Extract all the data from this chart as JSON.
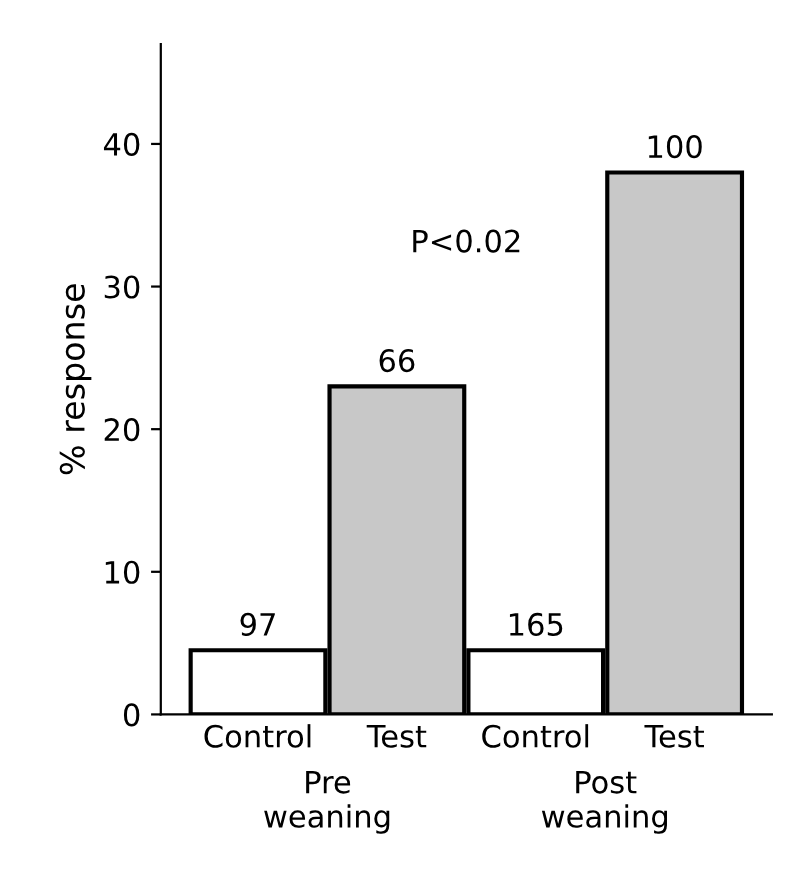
{
  "chart_data": {
    "type": "bar",
    "ylabel": "% response",
    "categories": [
      "Control",
      "Test",
      "Control",
      "Test"
    ],
    "values": [
      4.5,
      23,
      4.5,
      38
    ],
    "colors": [
      "#ffffff",
      "#c8c8c8",
      "#ffffff",
      "#c8c8c8"
    ],
    "ylim": [
      0,
      47
    ],
    "yticks": [
      0,
      10,
      20,
      30,
      40
    ],
    "grid": false,
    "legend": false,
    "annotations": [
      "P<0.02",
      "Pre\nweaning",
      "Post\nweaning",
      "97",
      "66",
      "165",
      "100"
    ]
  }
}
